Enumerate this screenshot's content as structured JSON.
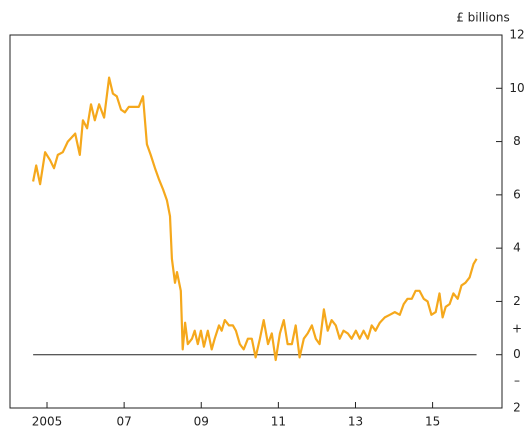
{
  "chart_data": {
    "type": "line",
    "y_unit_label": "£ billions",
    "sign_labels": {
      "positive": "+",
      "negative": "–"
    },
    "x": [
      2004.64,
      2004.72,
      2004.82,
      2004.95,
      2005.08,
      2005.18,
      2005.28,
      2005.41,
      2005.54,
      2005.73,
      2005.85,
      2005.93,
      2006.04,
      2006.14,
      2006.24,
      2006.35,
      2006.48,
      2006.61,
      2006.71,
      2006.81,
      2006.92,
      2007.02,
      2007.12,
      2007.25,
      2007.38,
      2007.49,
      2007.59,
      2007.69,
      2007.8,
      2007.9,
      2008.01,
      2008.11,
      2008.19,
      2008.24,
      2008.32,
      2008.37,
      2008.47,
      2008.52,
      2008.58,
      2008.65,
      2008.76,
      2008.83,
      2008.91,
      2008.99,
      2009.07,
      2009.17,
      2009.27,
      2009.35,
      2009.46,
      2009.53,
      2009.61,
      2009.72,
      2009.82,
      2009.9,
      2010.0,
      2010.1,
      2010.21,
      2010.31,
      2010.41,
      2010.52,
      2010.62,
      2010.73,
      2010.83,
      2010.93,
      2011.04,
      2011.14,
      2011.24,
      2011.35,
      2011.45,
      2011.55,
      2011.66,
      2011.76,
      2011.87,
      2011.97,
      2012.07,
      2012.18,
      2012.28,
      2012.38,
      2012.49,
      2012.59,
      2012.69,
      2012.8,
      2012.9,
      2013.01,
      2013.11,
      2013.21,
      2013.32,
      2013.42,
      2013.52,
      2013.63,
      2013.76,
      2013.89,
      2014.02,
      2014.15,
      2014.25,
      2014.35,
      2014.46,
      2014.56,
      2014.66,
      2014.77,
      2014.87,
      2014.97,
      2015.08,
      2015.18,
      2015.26,
      2015.34,
      2015.44,
      2015.54,
      2015.65,
      2015.75,
      2015.85,
      2015.96,
      2016.06,
      2016.14
    ],
    "series": [
      {
        "color": "#f5a81c",
        "values": [
          6.5,
          7.1,
          6.4,
          7.6,
          7.3,
          7.0,
          7.5,
          7.6,
          8.0,
          8.3,
          7.5,
          8.8,
          8.5,
          9.4,
          8.8,
          9.4,
          8.9,
          10.4,
          9.8,
          9.7,
          9.2,
          9.1,
          9.3,
          9.3,
          9.3,
          9.7,
          7.9,
          7.5,
          7.0,
          6.6,
          6.2,
          5.8,
          5.2,
          3.6,
          2.7,
          3.1,
          2.4,
          0.2,
          1.2,
          0.4,
          0.6,
          0.9,
          0.4,
          0.9,
          0.3,
          0.9,
          0.2,
          0.6,
          1.1,
          0.9,
          1.3,
          1.1,
          1.1,
          0.9,
          0.4,
          0.2,
          0.6,
          0.6,
          -0.1,
          0.6,
          1.3,
          0.4,
          0.8,
          -0.2,
          0.8,
          1.3,
          0.4,
          0.4,
          1.1,
          -0.1,
          0.6,
          0.8,
          1.1,
          0.6,
          0.4,
          1.7,
          0.9,
          1.3,
          1.1,
          0.6,
          0.9,
          0.8,
          0.6,
          0.9,
          0.6,
          0.9,
          0.6,
          1.1,
          0.9,
          1.2,
          1.4,
          1.5,
          1.6,
          1.5,
          1.9,
          2.1,
          2.1,
          2.4,
          2.4,
          2.1,
          2.0,
          1.5,
          1.6,
          2.3,
          1.4,
          1.8,
          1.9,
          2.3,
          2.1,
          2.6,
          2.7,
          2.9,
          3.4,
          3.6
        ]
      }
    ],
    "xlim": [
      2004.04,
      2016.8
    ],
    "xticks": [
      2005,
      {
        "value": 2007,
        "label": "07"
      },
      {
        "value": 2009,
        "label": "09"
      },
      {
        "value": 2011,
        "label": "11"
      },
      {
        "value": 2013,
        "label": "13"
      },
      {
        "value": 2015,
        "label": "15"
      }
    ],
    "ylim": [
      -2,
      12
    ],
    "yticks": [
      {
        "value": -2,
        "label": "2"
      },
      0,
      2,
      4,
      6,
      8,
      10,
      12
    ],
    "zero_line": true
  }
}
